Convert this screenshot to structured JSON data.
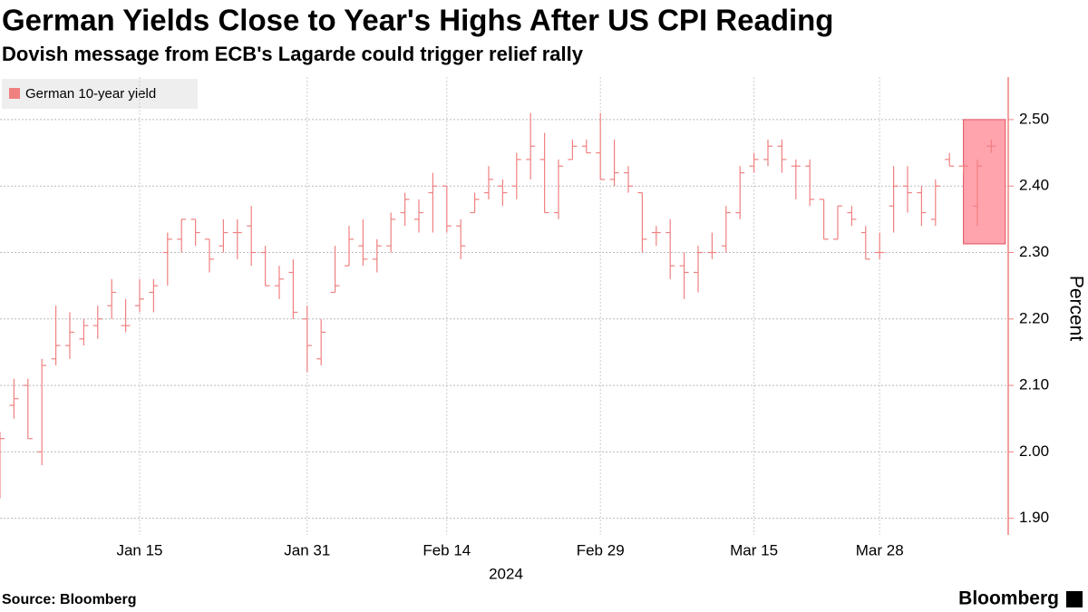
{
  "chart_data": {
    "type": "ohlc",
    "title": "German Yields Close to Year's Highs After US CPI Reading",
    "subtitle": "Dovish message from ECB's Lagarde could trigger relief rally",
    "series_name": "German 10-year yield",
    "color": "#f08080",
    "ylabel": "Percent",
    "xlabel": "2024",
    "source": "Source: Bloomberg",
    "brand": "Bloomberg",
    "x": [
      "2024-01-01",
      "2024-01-02",
      "2024-01-03",
      "2024-01-04",
      "2024-01-05",
      "2024-01-08",
      "2024-01-09",
      "2024-01-10",
      "2024-01-11",
      "2024-01-12",
      "2024-01-15",
      "2024-01-16",
      "2024-01-17",
      "2024-01-18",
      "2024-01-19",
      "2024-01-22",
      "2024-01-23",
      "2024-01-24",
      "2024-01-25",
      "2024-01-26",
      "2024-01-29",
      "2024-01-30",
      "2024-01-31",
      "2024-02-01",
      "2024-02-02",
      "2024-02-05",
      "2024-02-06",
      "2024-02-07",
      "2024-02-08",
      "2024-02-09",
      "2024-02-12",
      "2024-02-13",
      "2024-02-14",
      "2024-02-15",
      "2024-02-16",
      "2024-02-19",
      "2024-02-20",
      "2024-02-21",
      "2024-02-22",
      "2024-02-23",
      "2024-02-26",
      "2024-02-27",
      "2024-02-28",
      "2024-02-29",
      "2024-03-01",
      "2024-03-04",
      "2024-03-05",
      "2024-03-06",
      "2024-03-07",
      "2024-03-08",
      "2024-03-11",
      "2024-03-12",
      "2024-03-13",
      "2024-03-14",
      "2024-03-15",
      "2024-03-18",
      "2024-03-19",
      "2024-03-20",
      "2024-03-21",
      "2024-03-22",
      "2024-03-25",
      "2024-03-26",
      "2024-03-27",
      "2024-03-28",
      "2024-03-29",
      "2024-04-01",
      "2024-04-02",
      "2024-04-03",
      "2024-04-04",
      "2024-04-05",
      "2024-04-08",
      "2024-04-09"
    ],
    "open": [
      1.93,
      2.07,
      2.1,
      2.0,
      2.14,
      2.16,
      2.17,
      2.19,
      2.22,
      2.19,
      2.22,
      2.24,
      2.3,
      2.32,
      2.35,
      2.32,
      2.31,
      2.33,
      2.34,
      2.3,
      2.25,
      2.27,
      2.2,
      2.14,
      2.24,
      2.28,
      2.31,
      2.29,
      2.31,
      2.36,
      2.35,
      2.39,
      2.4,
      2.34,
      2.36,
      2.39,
      2.4,
      2.4,
      2.44,
      2.44,
      2.36,
      2.44,
      2.46,
      2.45,
      2.41,
      2.42,
      2.39,
      2.33,
      2.33,
      2.28,
      2.27,
      2.3,
      2.31,
      2.36,
      2.43,
      2.44,
      2.46,
      2.43,
      2.43,
      2.38,
      2.32,
      2.36,
      2.33,
      2.3,
      2.37,
      2.4,
      2.39,
      2.35,
      2.44,
      2.43,
      2.37,
      2.46
    ],
    "high": [
      2.03,
      2.11,
      2.11,
      2.14,
      2.22,
      2.21,
      2.2,
      2.22,
      2.26,
      2.23,
      2.26,
      2.26,
      2.33,
      2.35,
      2.35,
      2.32,
      2.35,
      2.35,
      2.37,
      2.31,
      2.28,
      2.29,
      2.22,
      2.2,
      2.31,
      2.34,
      2.35,
      2.32,
      2.36,
      2.39,
      2.38,
      2.42,
      2.4,
      2.35,
      2.39,
      2.43,
      2.41,
      2.45,
      2.51,
      2.48,
      2.44,
      2.47,
      2.47,
      2.51,
      2.47,
      2.43,
      2.39,
      2.34,
      2.35,
      2.3,
      2.31,
      2.33,
      2.37,
      2.43,
      2.45,
      2.47,
      2.47,
      2.44,
      2.44,
      2.38,
      2.37,
      2.37,
      2.34,
      2.33,
      2.43,
      2.43,
      2.4,
      2.41,
      2.45,
      2.43,
      2.44,
      2.47
    ],
    "low": [
      1.93,
      2.05,
      2.02,
      1.98,
      2.13,
      2.14,
      2.16,
      2.17,
      2.2,
      2.18,
      2.21,
      2.21,
      2.25,
      2.3,
      2.31,
      2.27,
      2.3,
      2.29,
      2.28,
      2.25,
      2.23,
      2.2,
      2.12,
      2.13,
      2.24,
      2.28,
      2.28,
      2.27,
      2.3,
      2.34,
      2.33,
      2.33,
      2.33,
      2.29,
      2.36,
      2.38,
      2.37,
      2.38,
      2.41,
      2.36,
      2.35,
      2.44,
      2.45,
      2.41,
      2.4,
      2.39,
      2.3,
      2.31,
      2.26,
      2.23,
      2.24,
      2.29,
      2.3,
      2.35,
      2.42,
      2.43,
      2.42,
      2.38,
      2.37,
      2.32,
      2.32,
      2.34,
      2.29,
      2.29,
      2.33,
      2.36,
      2.34,
      2.34,
      2.43,
      2.42,
      2.34,
      2.45
    ],
    "close": [
      2.02,
      2.08,
      2.02,
      2.13,
      2.16,
      2.18,
      2.19,
      2.2,
      2.24,
      2.19,
      2.23,
      2.25,
      2.32,
      2.35,
      2.33,
      2.29,
      2.33,
      2.33,
      2.3,
      2.25,
      2.26,
      2.21,
      2.16,
      2.18,
      2.25,
      2.32,
      2.29,
      2.31,
      2.35,
      2.38,
      2.36,
      2.4,
      2.34,
      2.31,
      2.38,
      2.41,
      2.39,
      2.44,
      2.46,
      2.36,
      2.43,
      2.46,
      2.45,
      2.41,
      2.42,
      2.4,
      2.32,
      2.33,
      2.28,
      2.27,
      2.3,
      2.3,
      2.36,
      2.42,
      2.44,
      2.46,
      2.44,
      2.43,
      2.38,
      2.32,
      2.37,
      2.35,
      2.29,
      2.3,
      2.4,
      2.39,
      2.36,
      2.4,
      2.43,
      2.43,
      2.43,
      2.46
    ],
    "highlight": {
      "x": [
        "2024-04-05",
        "2024-04-10"
      ],
      "y": [
        2.313,
        2.5
      ]
    },
    "xlim": [
      "2024-01-01",
      "2024-04-12"
    ],
    "xticks": [
      {
        "value": "2024-01-15",
        "label": "Jan 15"
      },
      {
        "value": "2024-01-31",
        "label": "Jan 31"
      },
      {
        "value": "2024-02-14",
        "label": "Feb 14"
      },
      {
        "value": "2024-02-29",
        "label": "Feb 29"
      },
      {
        "value": "2024-03-15",
        "label": "Mar 15"
      },
      {
        "value": "2024-03-28",
        "label": "Mar 28"
      }
    ],
    "ylim": [
      1.875,
      2.564
    ],
    "yticks": [
      {
        "value": 1.9,
        "label": "1.90"
      },
      {
        "value": 2.0,
        "label": "2.00"
      },
      {
        "value": 2.1,
        "label": "2.10"
      },
      {
        "value": 2.2,
        "label": "2.20"
      },
      {
        "value": 2.3,
        "label": "2.30"
      },
      {
        "value": 2.4,
        "label": "2.40"
      },
      {
        "value": 2.5,
        "label": "2.50"
      }
    ],
    "grid": true
  }
}
